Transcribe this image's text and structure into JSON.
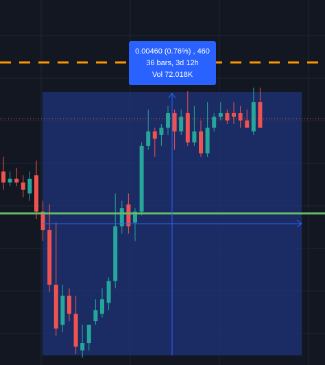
{
  "measure_tooltip": {
    "change_line": "0.00460 (0.76%) , 460",
    "bars_line": "36 bars, 3d 12h",
    "volume_line": "Vol 72.018K"
  },
  "colors": {
    "background": "#131722",
    "grid": "#1e2431",
    "bullish": "#26a69a",
    "bearish": "#ef5350",
    "measure_box": "#1e3a8a",
    "measure_line": "#2962ff",
    "alert_line": "#ff9800",
    "support_line": "#66bb6a",
    "price_line": "#ef5350"
  },
  "chart_data": {
    "type": "candlestick",
    "tool": "price-range-measure",
    "measured_bars": 36,
    "measured_change": 0.0046,
    "measured_change_percent": 0.76,
    "measured_ticks": 460,
    "measured_duration": "3d 12h",
    "measured_volume": "72.018K",
    "grid": true,
    "axis_labels_visible": false,
    "candles_relative": [
      {
        "o": 0.47,
        "h": 0.43,
        "l": 0.52,
        "c": 0.5
      },
      {
        "o": 0.5,
        "h": 0.47,
        "l": 0.51,
        "c": 0.49
      },
      {
        "o": 0.49,
        "h": 0.46,
        "l": 0.51,
        "c": 0.5
      },
      {
        "o": 0.5,
        "h": 0.48,
        "l": 0.54,
        "c": 0.52
      },
      {
        "o": 0.53,
        "h": 0.55,
        "l": 0.47,
        "c": 0.49
      },
      {
        "o": 0.48,
        "h": 0.44,
        "l": 0.6,
        "c": 0.58
      },
      {
        "o": 0.58,
        "h": 0.55,
        "l": 0.66,
        "c": 0.63
      },
      {
        "o": 0.63,
        "h": 0.56,
        "l": 0.8,
        "c": 0.78
      },
      {
        "o": 0.78,
        "h": 0.61,
        "l": 0.92,
        "c": 0.9
      },
      {
        "o": 0.89,
        "h": 0.78,
        "l": 0.91,
        "c": 0.81
      },
      {
        "o": 0.81,
        "h": 0.79,
        "l": 0.88,
        "c": 0.86
      },
      {
        "o": 0.86,
        "h": 0.81,
        "l": 0.97,
        "c": 0.95
      },
      {
        "o": 0.96,
        "h": 0.89,
        "l": 0.98,
        "c": 0.94
      },
      {
        "o": 0.94,
        "h": 0.9,
        "l": 0.96,
        "c": 0.89
      },
      {
        "o": 0.88,
        "h": 0.82,
        "l": 0.89,
        "c": 0.85
      },
      {
        "o": 0.86,
        "h": 0.79,
        "l": 0.87,
        "c": 0.82
      },
      {
        "o": 0.83,
        "h": 0.76,
        "l": 0.85,
        "c": 0.77
      },
      {
        "o": 0.77,
        "h": 0.53,
        "l": 0.79,
        "c": 0.62
      },
      {
        "o": 0.62,
        "h": 0.55,
        "l": 0.64,
        "c": 0.57
      },
      {
        "o": 0.56,
        "h": 0.53,
        "l": 0.64,
        "c": 0.62
      },
      {
        "o": 0.61,
        "h": 0.57,
        "l": 0.66,
        "c": 0.58
      },
      {
        "o": 0.58,
        "h": 0.39,
        "l": 0.59,
        "c": 0.4
      },
      {
        "o": 0.4,
        "h": 0.3,
        "l": 0.41,
        "c": 0.36
      },
      {
        "o": 0.36,
        "h": 0.35,
        "l": 0.43,
        "c": 0.38
      },
      {
        "o": 0.37,
        "h": 0.34,
        "l": 0.4,
        "c": 0.35
      },
      {
        "o": 0.35,
        "h": 0.29,
        "l": 0.37,
        "c": 0.31
      },
      {
        "o": 0.31,
        "h": 0.3,
        "l": 0.41,
        "c": 0.36
      },
      {
        "o": 0.36,
        "h": 0.3,
        "l": 0.37,
        "c": 0.32
      },
      {
        "o": 0.31,
        "h": 0.25,
        "l": 0.4,
        "c": 0.39
      },
      {
        "o": 0.39,
        "h": 0.29,
        "l": 0.4,
        "c": 0.36
      },
      {
        "o": 0.36,
        "h": 0.33,
        "l": 0.43,
        "c": 0.42
      },
      {
        "o": 0.42,
        "h": 0.28,
        "l": 0.43,
        "c": 0.35
      },
      {
        "o": 0.35,
        "h": 0.31,
        "l": 0.36,
        "c": 0.32
      },
      {
        "o": 0.32,
        "h": 0.28,
        "l": 0.33,
        "c": 0.31
      },
      {
        "o": 0.31,
        "h": 0.3,
        "l": 0.34,
        "c": 0.33
      },
      {
        "o": 0.31,
        "h": 0.28,
        "l": 0.34,
        "c": 0.32
      },
      {
        "o": 0.31,
        "h": 0.29,
        "l": 0.35,
        "c": 0.33
      },
      {
        "o": 0.33,
        "h": 0.3,
        "l": 0.35,
        "c": 0.35
      },
      {
        "o": 0.36,
        "h": 0.24,
        "l": 0.37,
        "c": 0.28
      },
      {
        "o": 0.28,
        "h": 0.24,
        "l": 0.35,
        "c": 0.35
      }
    ]
  }
}
